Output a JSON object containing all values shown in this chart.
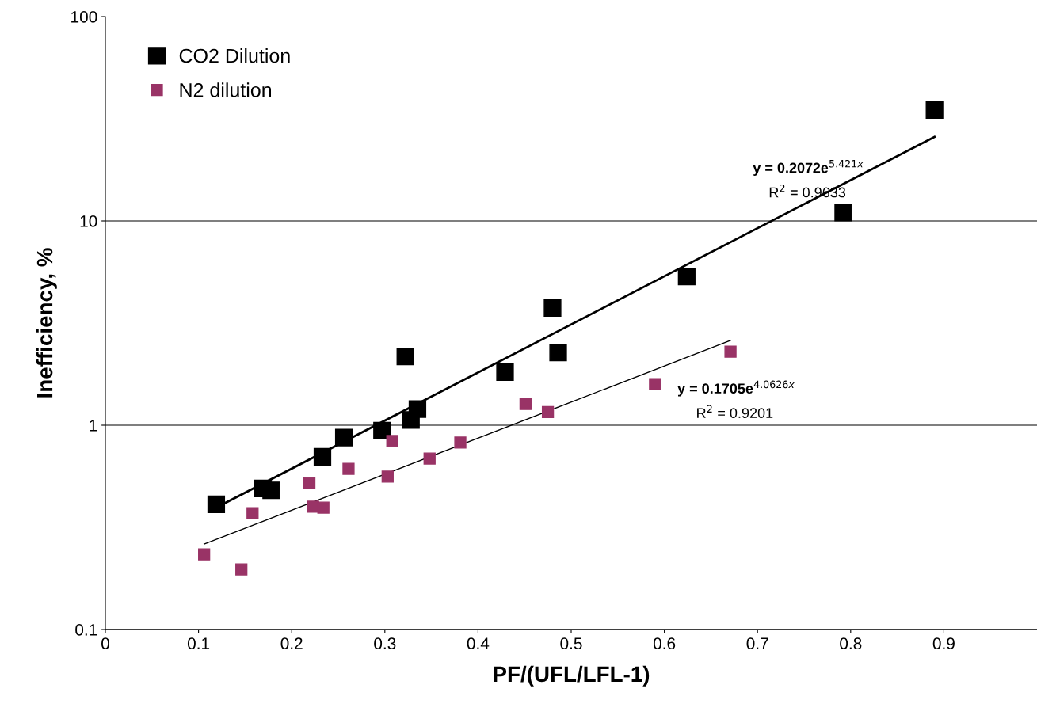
{
  "chart_data": {
    "type": "scatter",
    "xlabel": "PF/(UFL/LFL-1)",
    "ylabel": "Inefficiency, %",
    "log": "y",
    "grid": "y",
    "legend": "top left",
    "marker": "square",
    "xlim": [
      0,
      1
    ],
    "xticks": [
      0,
      0.1,
      0.2,
      0.3,
      0.4,
      0.5,
      0.6,
      0.7,
      0.8,
      0.9
    ],
    "ylim": [
      0.1,
      100
    ],
    "yticks": [
      0.1,
      1,
      10,
      100
    ],
    "series": [
      {
        "name": "CO2 Dilution",
        "color": "#000000",
        "x": [
          0.119,
          0.169,
          0.178,
          0.233,
          0.256,
          0.297,
          0.322,
          0.328,
          0.335,
          0.429,
          0.48,
          0.486,
          0.624,
          0.792,
          0.89
        ],
        "values": [
          0.41,
          0.49,
          0.48,
          0.7,
          0.87,
          0.94,
          2.17,
          1.06,
          1.2,
          1.82,
          3.75,
          2.27,
          5.35,
          11.0,
          34.9
        ]
      },
      {
        "name": "N2 dilution",
        "color": "#993366",
        "x": [
          0.106,
          0.146,
          0.158,
          0.219,
          0.223,
          0.234,
          0.261,
          0.303,
          0.308,
          0.348,
          0.381,
          0.451,
          0.475,
          0.59,
          0.671
        ],
        "values": [
          0.233,
          0.197,
          0.371,
          0.521,
          0.399,
          0.395,
          0.612,
          0.56,
          0.837,
          0.687,
          0.822,
          1.27,
          1.16,
          1.59,
          2.29
        ]
      },
      {
        "type": "line",
        "color": "#000000",
        "marker": "none",
        "x": [
          0.119,
          0.89
        ],
        "values": [
          0.395,
          25.8
        ]
      },
      {
        "type": "line",
        "color": "#000000",
        "marker": "none",
        "x": [
          0.106,
          0.671
        ],
        "values": [
          0.262,
          2.6
        ]
      }
    ],
    "annotations": [
      "y = 0.2072e$^{5.421x}$",
      "R$^{2}$ = 0.9633",
      "y = 0.1705e$^{4.0626x}$",
      "R$^{2}$ = 0.9201"
    ]
  }
}
